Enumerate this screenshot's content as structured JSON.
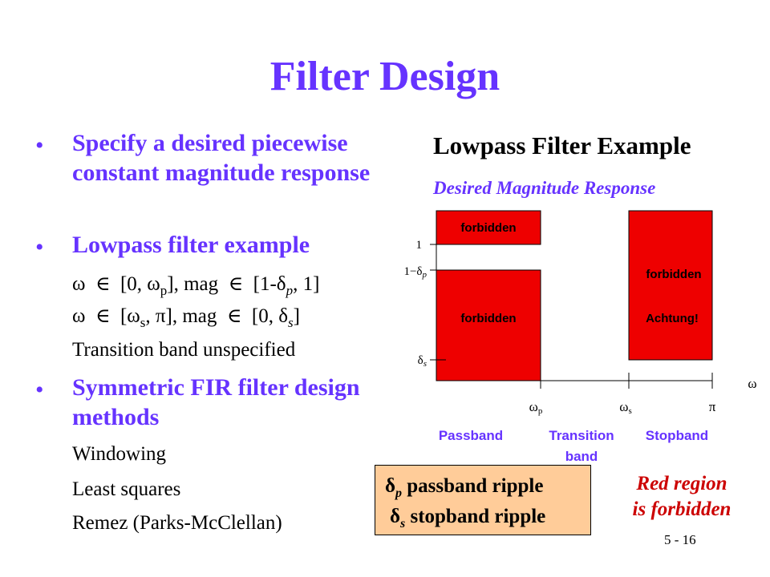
{
  "slide": {
    "title": "Filter Design",
    "page_number": "5 - 16"
  },
  "bullets": [
    {
      "text": "Specify a desired piecewise constant magnitude response"
    },
    {
      "text": "Lowpass filter example"
    },
    {
      "text": "Symmetric FIR filter design methods"
    }
  ],
  "bullet_marker": "•",
  "constraints": {
    "passband": {
      "sym": "ω",
      "in": "∈",
      "range_open": "[0, ω",
      "range_sub": "p",
      "range_close": "], mag",
      "mag_in": "∈",
      "mag_open": "[1-δ",
      "mag_sub": "p",
      "mag_close": ", 1]"
    },
    "stopband": {
      "sym": "ω",
      "in": "∈",
      "range_open": "[ω",
      "range_sub": "s",
      "range_close": ", π], mag",
      "mag_in": "∈",
      "mag_open": "[0, δ",
      "mag_sub": "s",
      "mag_close": "]"
    },
    "transition": "Transition band unspecified"
  },
  "methods": [
    "Windowing",
    "Least squares",
    "Remez (Parks-McClellan)"
  ],
  "diagram": {
    "heading": "Lowpass Filter Example",
    "subheading": "Desired Magnitude Response",
    "forbidden_label": "forbidden",
    "achtung_label": "Achtung!",
    "y_tick_one": "1",
    "y_tick_one_minus_prefix": "1−δ",
    "y_tick_one_minus_sub": "p",
    "y_tick_delta": "δ",
    "y_tick_delta_sub": "s",
    "x_axis_symbol": "ω",
    "x_tick_wp": "ω",
    "x_tick_wp_sub": "p",
    "x_tick_ws": "ω",
    "x_tick_ws_sub": "s",
    "x_tick_pi": "π",
    "band_passband": "Passband",
    "band_transition_line1": "Transition",
    "band_transition_line2": "band",
    "band_stopband": "Stopband",
    "colors": {
      "forbidden_fill": "#ee0000",
      "band_label": "#6633ff",
      "title": "#6633ff"
    }
  },
  "legend": {
    "line1_sym": "δ",
    "line1_sub": "p",
    "line1_text": " passband ripple",
    "line2_sym": "δ",
    "line2_sub": "s",
    "line2_text": " stopband ripple"
  },
  "note": {
    "line1": "Red region",
    "line2": "is forbidden"
  }
}
